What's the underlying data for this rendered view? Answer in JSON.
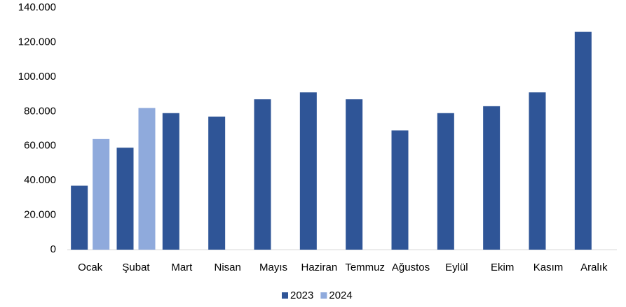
{
  "chart_data": {
    "type": "bar",
    "categories": [
      "Ocak",
      "Şubat",
      "Mart",
      "Nisan",
      "Mayıs",
      "Haziran",
      "Temmuz",
      "Ağustos",
      "Eylül",
      "Ekim",
      "Kasım",
      "Aralık"
    ],
    "series": [
      {
        "name": "2023",
        "color": "#2f5597",
        "values": [
          37000,
          59000,
          79000,
          77000,
          87000,
          91000,
          87000,
          69000,
          79000,
          83000,
          91000,
          126000
        ]
      },
      {
        "name": "2024",
        "color": "#8faadc",
        "values": [
          64000,
          82000,
          null,
          null,
          null,
          null,
          null,
          null,
          null,
          null,
          null,
          null
        ]
      }
    ],
    "ylim": [
      0,
      140000
    ],
    "yticks": [
      0,
      {
        "value": 20000,
        "label": "20.000"
      },
      {
        "value": 40000,
        "label": "40.000"
      },
      {
        "value": 60000,
        "label": "60.000"
      },
      {
        "value": 80000,
        "label": "80.000"
      },
      {
        "value": 100000,
        "label": "100.000"
      },
      {
        "value": 120000,
        "label": "120.000"
      },
      {
        "value": 140000,
        "label": "140.000"
      }
    ],
    "grid": false,
    "legend": "bottom"
  }
}
